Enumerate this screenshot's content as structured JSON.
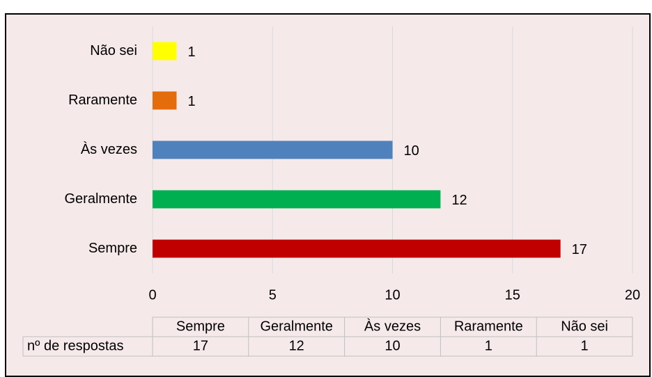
{
  "chart_data": {
    "type": "bar",
    "orientation": "horizontal",
    "categories": [
      "Sempre",
      "Geralmente",
      "Às vezes",
      "Raramente",
      "Não sei"
    ],
    "values": [
      17,
      12,
      10,
      1,
      1
    ],
    "colors": [
      "#c00000",
      "#00b050",
      "#4f81bd",
      "#e46c0a",
      "#ffff00"
    ],
    "xlim": [
      0,
      20
    ],
    "xticks": [
      0,
      5,
      10,
      15,
      20
    ],
    "grid": true,
    "data_table": {
      "row_label": "nº de respostas"
    }
  }
}
